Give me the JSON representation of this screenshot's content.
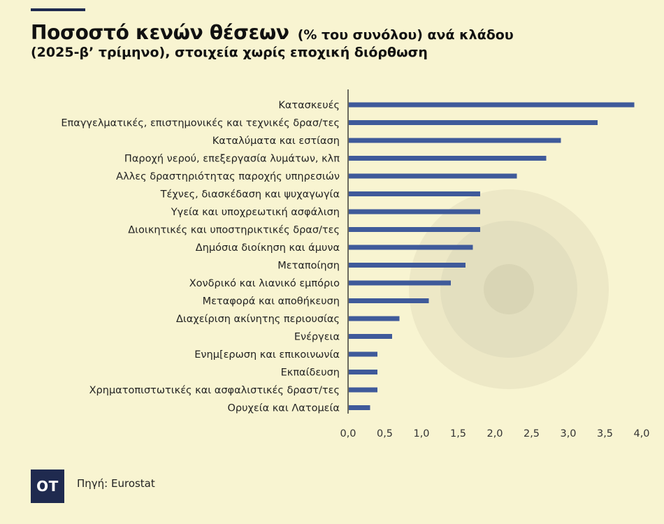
{
  "header": {
    "title_main": "Ποσοστό κενών θέσεων",
    "title_rest": "(% του συνόλου) ανά κλάδου",
    "title_line2": "(2025-β’ τρίμηνο), στοιχεία χωρίς εποχική διόρθωση"
  },
  "footer": {
    "logo_text": "OT",
    "source": "Πηγή: Eurostat"
  },
  "colors": {
    "background": "#f8f4d1",
    "bar": "#3f5a9a",
    "logo": "#1f2a4f"
  },
  "chart_data": {
    "type": "bar",
    "orientation": "horizontal",
    "categories": [
      "Κατασκευές",
      "Επαγγελματικές, επιστημονικές και τεχνικές δρασ/τες",
      "Καταλύματα και εστίαση",
      "Παροχή νερού, επεξεργασία λυμάτων, κλπ",
      "Αλλες δραστηριότητας παροχής υπηρεσιών",
      "Τέχνες, διασκέδαση και ψυχαγωγία",
      "Υγεία και υποχρεωτική ασφάλιση",
      "Διοικητικές και υποστηρικτικές δρασ/τες",
      "Δημόσια διοίκηση και άμυνα",
      "Μεταποίηση",
      "Χονδρικό και λιανικό εμπόριο",
      "Μεταφορά και αποθήκευση",
      "Διαχείριση ακίνητης περιουσίας",
      "Ενέργεια",
      "Ενημ[ερωση και επικοινωνία",
      "Εκπαίδευση",
      "Χρηματοπιστωτικές και ασφαλιστικές δραστ/τες",
      "Ορυχεία και Λατομεία"
    ],
    "values": [
      3.9,
      3.4,
      2.9,
      2.7,
      2.3,
      1.8,
      1.8,
      1.8,
      1.7,
      1.6,
      1.4,
      1.1,
      0.7,
      0.6,
      0.4,
      0.4,
      0.4,
      0.3
    ],
    "xlim": [
      0,
      4.0
    ],
    "xticks": [
      "0,0",
      "0,5",
      "1,0",
      "1,5",
      "2,0",
      "2,5",
      "3,0",
      "3,5",
      "4,0"
    ],
    "grid": false,
    "legend": "none"
  }
}
